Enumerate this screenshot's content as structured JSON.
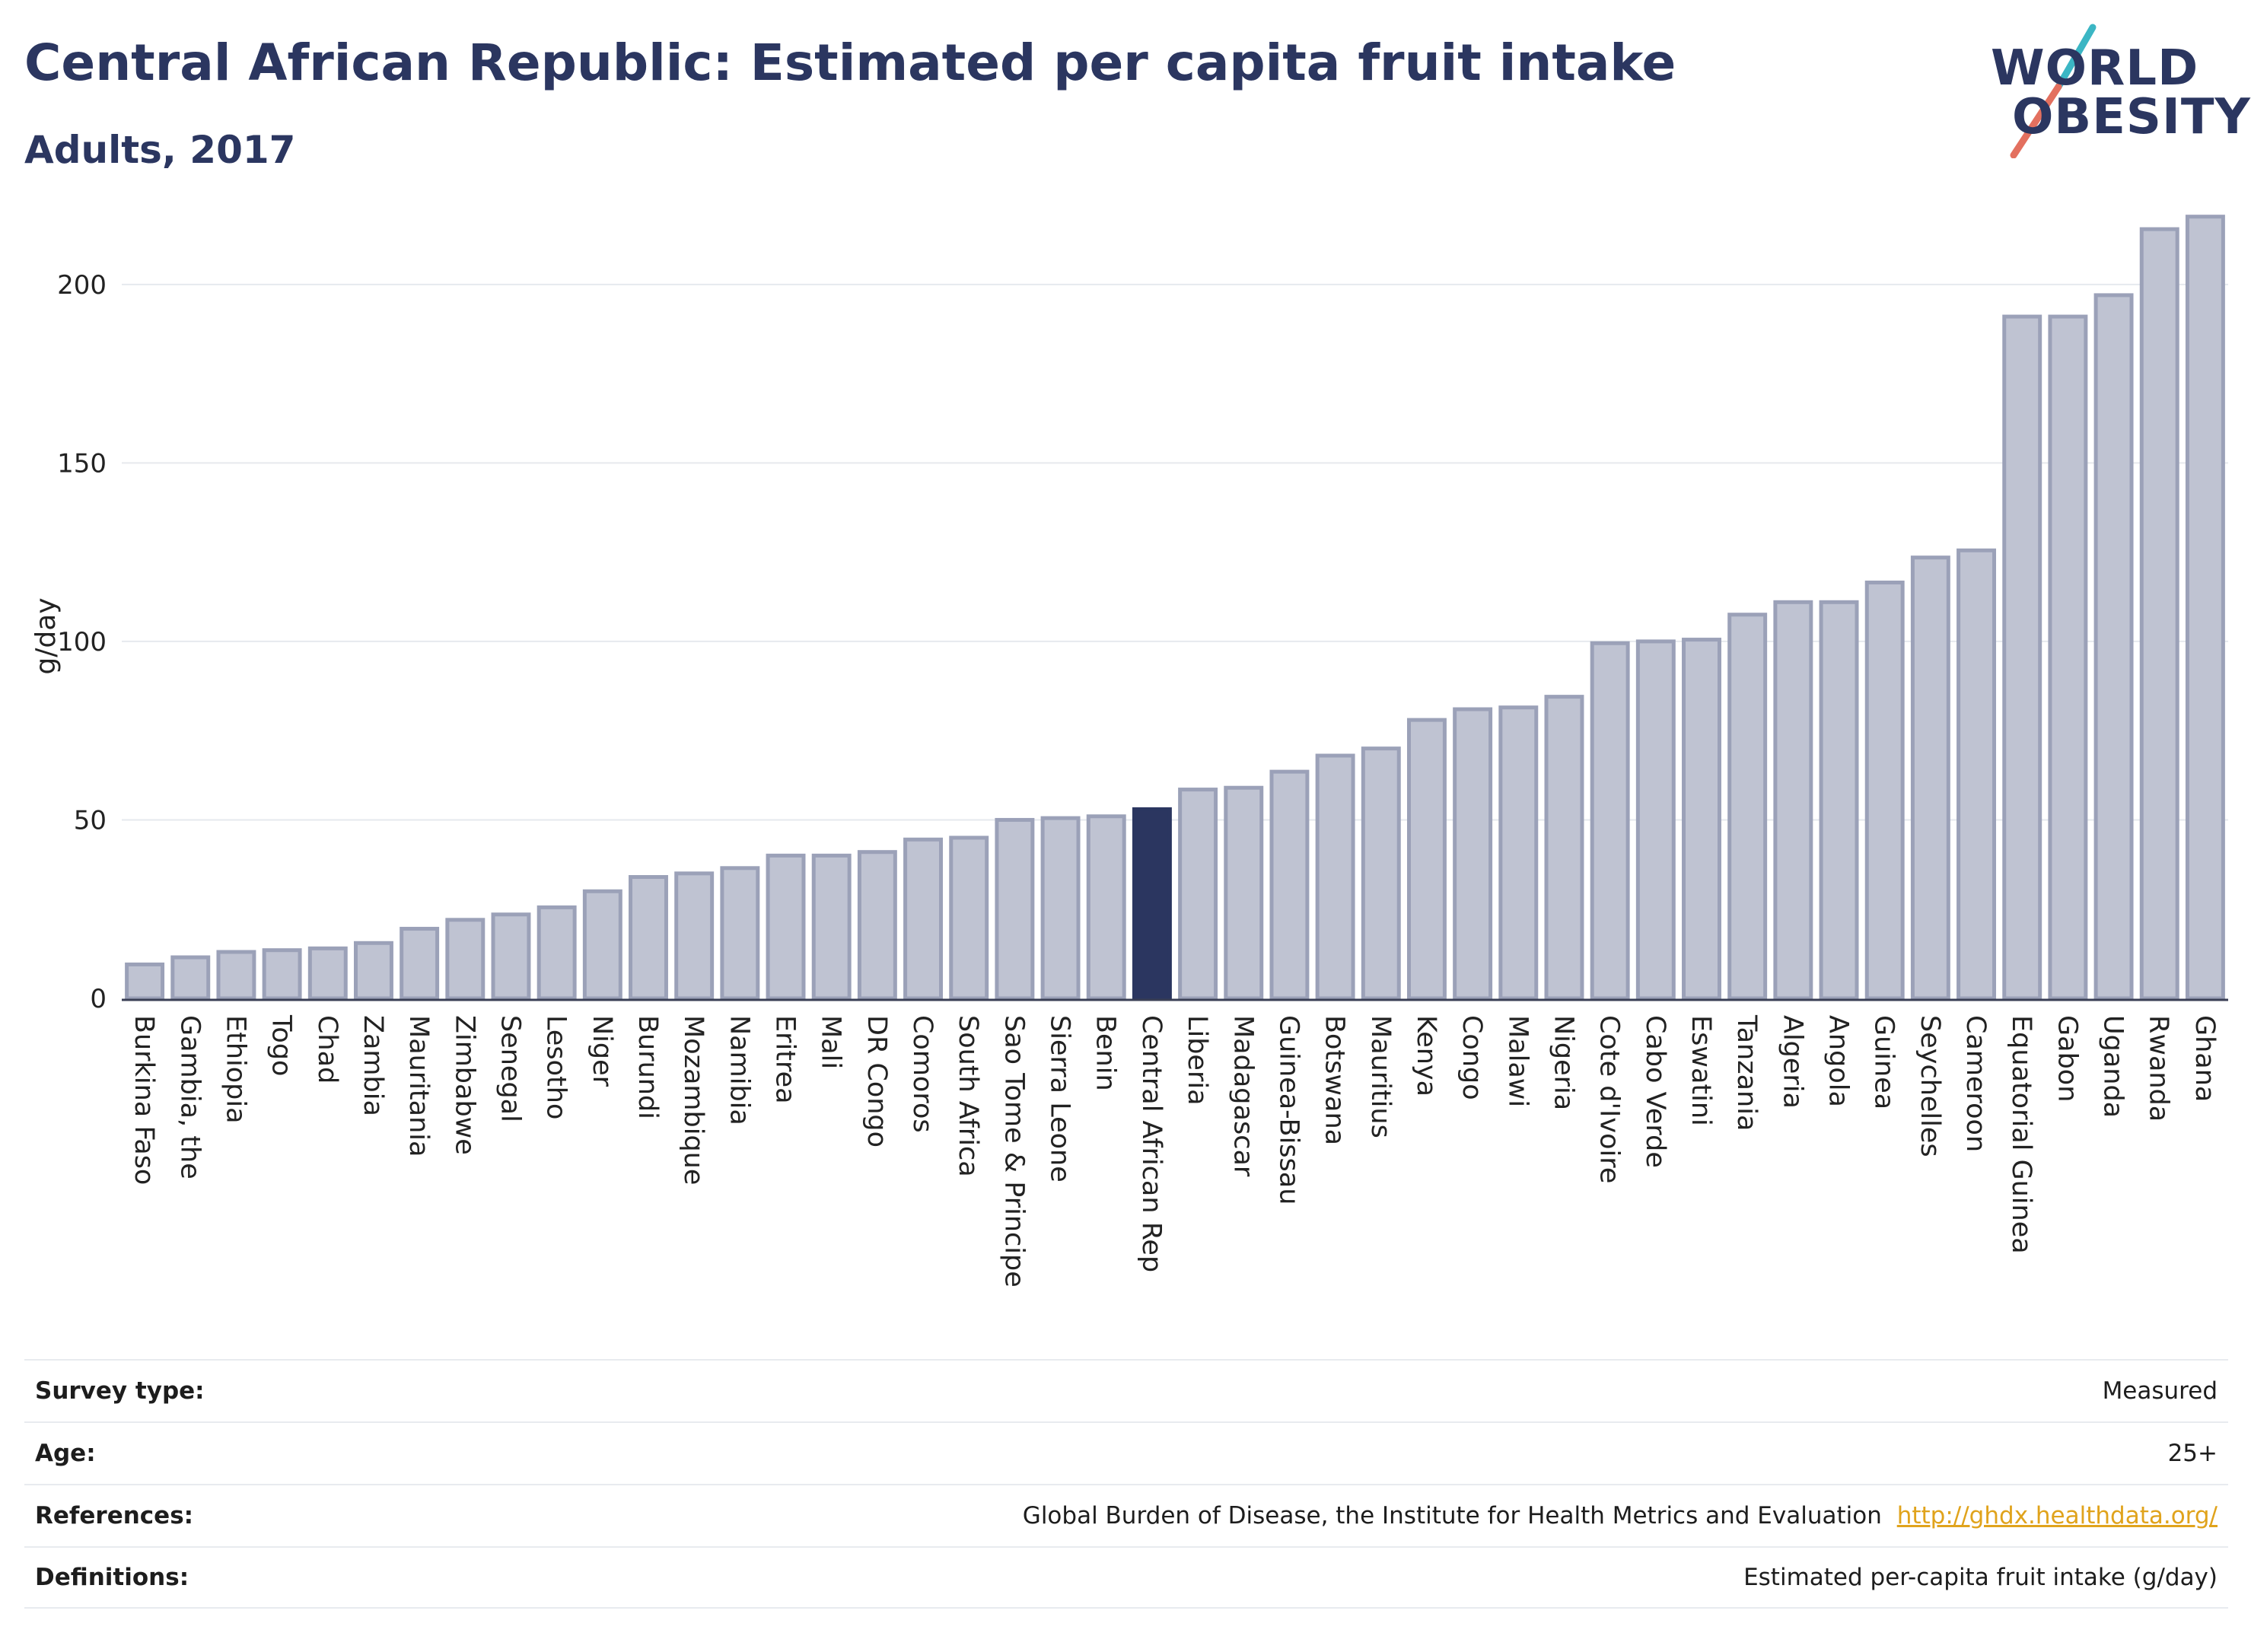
{
  "header": {
    "title": "Central African Republic: Estimated per capita fruit intake",
    "subtitle": "Adults, 2017"
  },
  "logo": {
    "line1": "WORLD",
    "line2": "OBESITY",
    "colors": {
      "text": "#2b3660",
      "slash_top": "#3bb6c4",
      "slash_bottom": "#e3705f"
    }
  },
  "chart_data": {
    "type": "bar",
    "title": "Central African Republic: Estimated per capita fruit intake",
    "subtitle": "Adults, 2017",
    "ylabel": "g/day",
    "xlabel": "",
    "ylim": [
      0,
      220
    ],
    "yticks": [
      0,
      50,
      100,
      150,
      200
    ],
    "grid": true,
    "highlight": "Central African Rep",
    "colors": {
      "bar": "#bfc3d2",
      "bar_border": "#9ba1b8",
      "highlight": "#2b3660",
      "grid": "#e6e9ee"
    },
    "categories": [
      "Burkina Faso",
      "Gambia, the",
      "Ethiopia",
      "Togo",
      "Chad",
      "Zambia",
      "Mauritania",
      "Zimbabwe",
      "Senegal",
      "Lesotho",
      "Niger",
      "Burundi",
      "Mozambique",
      "Namibia",
      "Eritrea",
      "Mali",
      "DR Congo",
      "Comoros",
      "South Africa",
      "Sao Tome & Principe",
      "Sierra Leone",
      "Benin",
      "Central African Rep",
      "Liberia",
      "Madagascar",
      "Guinea-Bissau",
      "Botswana",
      "Mauritius",
      "Kenya",
      "Congo",
      "Malawi",
      "Nigeria",
      "Cote d'Ivoire",
      "Cabo Verde",
      "Eswatini",
      "Tanzania",
      "Algeria",
      "Angola",
      "Guinea",
      "Seychelles",
      "Cameroon",
      "Equatorial Guinea",
      "Gabon",
      "Uganda",
      "Rwanda",
      "Ghana"
    ],
    "values": [
      9.5,
      11.5,
      13,
      13.5,
      14,
      15.5,
      19.5,
      22,
      23.5,
      25.5,
      30,
      34,
      35,
      36.5,
      40,
      40,
      41,
      44.5,
      45,
      50,
      50.5,
      51,
      53,
      58.5,
      59,
      63.5,
      68,
      70,
      78,
      81,
      81.5,
      84.5,
      99.5,
      100,
      100.5,
      107.5,
      111,
      111,
      116.5,
      123.5,
      125.5,
      191,
      191,
      197,
      215.5,
      219
    ]
  },
  "meta": {
    "survey_label": "Survey type:",
    "survey_value": "Measured",
    "age_label": "Age:",
    "age_value": "25+",
    "references_label": "References:",
    "references_value": "Global Burden of Disease, the Institute for Health Metrics and Evaluation",
    "references_link": "http://ghdx.healthdata.org/",
    "definitions_label": "Definitions:",
    "definitions_value": "Estimated per-capita fruit intake (g/day)"
  }
}
